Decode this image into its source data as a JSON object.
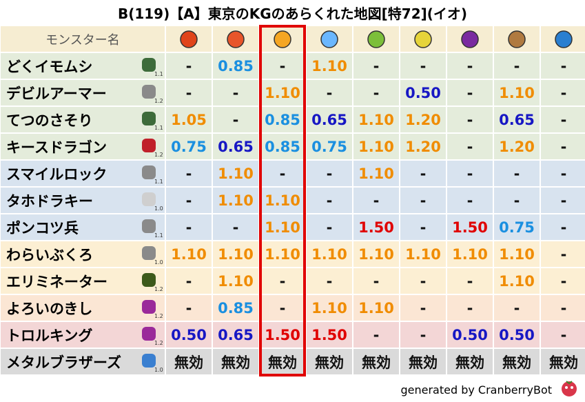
{
  "title": "B(119)【A】東京のKGのあらくれた地図[特72](イオ)",
  "header": {
    "name_column": "モンスター名",
    "header_bg": "#f6edd2"
  },
  "value_colors": {
    "-": "#111111",
    "1.05": "#f08c00",
    "1.10": "#f08c00",
    "1.20": "#f08c00",
    "0.85": "#1a8fe0",
    "0.75": "#1a8fe0",
    "0.65": "#1717c4",
    "0.50": "#1717c4",
    "1.50": "#e00000",
    "無効": "#111111"
  },
  "highlight_color": "#e00000",
  "table": {
    "rows": [
      {
        "name": "どくイモムシ",
        "level": "1.1",
        "bg": "#e4ecdb",
        "cells": [
          "-",
          "0.85",
          "-",
          "1.10",
          "-",
          "-",
          "-",
          "-",
          "-"
        ]
      },
      {
        "name": "デビルアーマー",
        "level": "1.2",
        "bg": "#e4ecdb",
        "cells": [
          "-",
          "-",
          "1.10",
          "-",
          "-",
          "0.50",
          "-",
          "1.10",
          "-"
        ]
      },
      {
        "name": "てつのさそり",
        "level": "1.1",
        "bg": "#e4ecdb",
        "cells": [
          "1.05",
          "-",
          "0.85",
          "0.65",
          "1.10",
          "1.20",
          "-",
          "0.65",
          "-"
        ]
      },
      {
        "name": "キースドラゴン",
        "level": "1.2",
        "bg": "#e4ecdb",
        "cells": [
          "0.75",
          "0.65",
          "0.85",
          "0.75",
          "1.10",
          "1.20",
          "-",
          "1.20",
          "-"
        ]
      },
      {
        "name": "スマイルロック",
        "level": "1.1",
        "bg": "#d8e3ef",
        "cells": [
          "-",
          "1.10",
          "-",
          "-",
          "1.10",
          "-",
          "-",
          "-",
          "-"
        ]
      },
      {
        "name": "タホドラキー",
        "level": "1.0",
        "bg": "#d8e3ef",
        "cells": [
          "-",
          "1.10",
          "1.10",
          "-",
          "-",
          "-",
          "-",
          "-",
          "-"
        ]
      },
      {
        "name": "ポンコツ兵",
        "level": "1.1",
        "bg": "#d8e3ef",
        "cells": [
          "-",
          "-",
          "1.10",
          "-",
          "1.50",
          "-",
          "1.50",
          "0.75",
          "-"
        ]
      },
      {
        "name": "わらいぶくろ",
        "level": "1.0",
        "bg": "#fcefd3",
        "cells": [
          "1.10",
          "1.10",
          "1.10",
          "1.10",
          "1.10",
          "1.10",
          "1.10",
          "1.10",
          "-"
        ]
      },
      {
        "name": "エリミネーター",
        "level": "1.2",
        "bg": "#fcefd3",
        "cells": [
          "-",
          "1.10",
          "-",
          "-",
          "-",
          "-",
          "-",
          "1.10",
          "-"
        ]
      },
      {
        "name": "よろいのきし",
        "level": "1.2",
        "bg": "#fbe6d4",
        "cells": [
          "-",
          "0.85",
          "-",
          "1.10",
          "1.10",
          "-",
          "-",
          "-",
          "-"
        ]
      },
      {
        "name": "トロルキング",
        "level": "1.2",
        "bg": "#f3d6d6",
        "cells": [
          "0.50",
          "0.65",
          "1.50",
          "1.50",
          "-",
          "-",
          "0.50",
          "0.50",
          "-"
        ]
      },
      {
        "name": "メタルブラザーズ",
        "level": "1.0",
        "bg": "#dadada",
        "cells": [
          "無効",
          "無効",
          "無効",
          "無効",
          "無効",
          "無効",
          "無効",
          "無効",
          "無効"
        ]
      }
    ]
  },
  "footer": "generated by CranberryBot"
}
